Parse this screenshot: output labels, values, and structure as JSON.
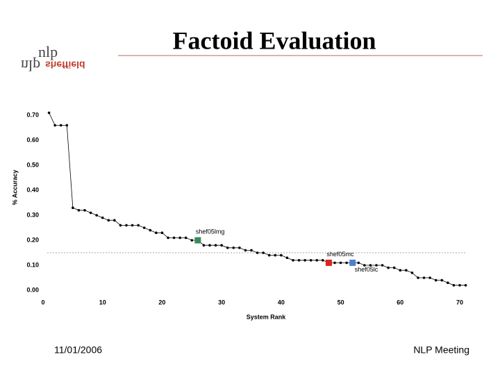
{
  "header": {
    "title": "Factoid Evaluation",
    "logo": {
      "nlp": "nlp",
      "sheffield": "sheffield"
    }
  },
  "chart_data": {
    "type": "line",
    "x_label": "System Rank",
    "y_label": "% Accuracy",
    "x": [
      1,
      2,
      3,
      4,
      5,
      6,
      7,
      8,
      9,
      10,
      11,
      12,
      13,
      14,
      15,
      16,
      17,
      18,
      19,
      20,
      21,
      22,
      23,
      24,
      25,
      26,
      27,
      28,
      29,
      30,
      31,
      32,
      33,
      34,
      35,
      36,
      37,
      38,
      39,
      40,
      41,
      42,
      43,
      44,
      45,
      46,
      47,
      48,
      49,
      50,
      51,
      52,
      53,
      54,
      55,
      56,
      57,
      58,
      59,
      60,
      61,
      62,
      63,
      64,
      65,
      66,
      67,
      68,
      69,
      70,
      71
    ],
    "series": [
      {
        "color": "#000000",
        "values": [
          0.71,
          0.66,
          0.66,
          0.66,
          0.33,
          0.32,
          0.32,
          0.31,
          0.3,
          0.29,
          0.28,
          0.28,
          0.26,
          0.26,
          0.26,
          0.26,
          0.25,
          0.24,
          0.23,
          0.23,
          0.21,
          0.21,
          0.21,
          0.21,
          0.2,
          0.2,
          0.18,
          0.18,
          0.18,
          0.18,
          0.17,
          0.17,
          0.17,
          0.16,
          0.16,
          0.15,
          0.15,
          0.14,
          0.14,
          0.14,
          0.13,
          0.12,
          0.12,
          0.12,
          0.12,
          0.12,
          0.12,
          0.11,
          0.11,
          0.11,
          0.11,
          0.11,
          0.11,
          0.1,
          0.1,
          0.1,
          0.1,
          0.09,
          0.09,
          0.08,
          0.08,
          0.07,
          0.05,
          0.05,
          0.05,
          0.04,
          0.04,
          0.03,
          0.02,
          0.02,
          0.02
        ]
      }
    ],
    "highlights": [
      {
        "label": "shef05lmg",
        "x": 26,
        "y": 0.2,
        "color": "#3a8a5c"
      },
      {
        "label": "shef05mc",
        "x": 48,
        "y": 0.11,
        "color": "#e02020"
      },
      {
        "label": "shef05lc",
        "x": 52,
        "y": 0.11,
        "color": "#4a7fd0"
      }
    ],
    "reference_line": 0.15,
    "xlim": [
      0,
      70
    ],
    "xticks": [
      0,
      10,
      20,
      30,
      40,
      50,
      60,
      70
    ],
    "ylim": [
      0,
      0.7
    ],
    "yticks": [
      {
        "value": 0,
        "label": "0.00"
      },
      {
        "value": 0.1,
        "label": "0.10"
      },
      {
        "value": 0.2,
        "label": "0.20"
      },
      {
        "value": 0.3,
        "label": "0.30"
      },
      {
        "value": 0.4,
        "label": "0.40"
      },
      {
        "value": 0.5,
        "label": "0.50"
      },
      {
        "value": 0.6,
        "label": "0.60"
      },
      {
        "value": 0.7,
        "label": "0.70"
      }
    ],
    "grid": false
  },
  "footer": {
    "date": "11/01/2006",
    "event": "NLP Meeting"
  }
}
